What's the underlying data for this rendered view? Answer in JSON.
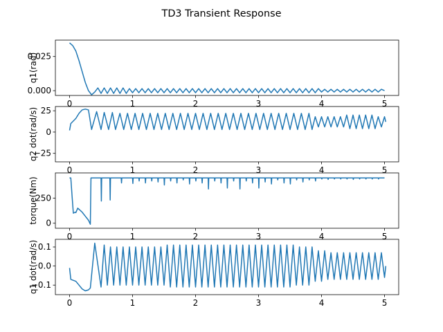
{
  "title": "TD3 Transient Response",
  "colors": {
    "series": "#1f77b4"
  },
  "chart_data": [
    {
      "type": "line",
      "ylabel": "q1(rad)",
      "xlim": [
        -0.225,
        5.225
      ],
      "ylim": [
        -0.0035,
        0.037
      ],
      "xticks": [
        0,
        1,
        2,
        3,
        4,
        5
      ],
      "xtick_labels": [
        "0",
        "1",
        "2",
        "3",
        "4",
        "5"
      ],
      "yticks": [
        0.0,
        0.025
      ],
      "ytick_labels": [
        "0.000",
        "0.025"
      ],
      "grid": false,
      "series": [
        {
          "x": [
            0,
            0.05,
            0.1,
            0.15,
            0.2,
            0.25,
            0.3,
            0.35,
            0.4,
            0.45,
            0.5,
            0.55,
            0.6,
            0.65,
            0.7,
            0.75,
            0.8,
            0.85,
            0.9,
            0.95,
            1.0,
            1.05,
            1.1,
            1.15,
            1.2,
            1.25,
            1.3,
            1.35,
            1.4,
            1.45,
            1.5,
            1.55,
            1.6,
            1.65,
            1.7,
            1.75,
            1.8,
            1.85,
            1.9,
            1.95,
            2.0,
            2.05,
            2.1,
            2.15,
            2.2,
            2.25,
            2.3,
            2.35,
            2.4,
            2.45,
            2.5,
            2.55,
            2.6,
            2.65,
            2.7,
            2.75,
            2.8,
            2.85,
            2.9,
            2.95,
            3.0,
            3.05,
            3.1,
            3.15,
            3.2,
            3.25,
            3.3,
            3.35,
            3.4,
            3.45,
            3.5,
            3.55,
            3.6,
            3.65,
            3.7,
            3.75,
            3.8,
            3.85,
            3.9,
            3.95,
            4.0,
            4.05,
            4.1,
            4.15,
            4.2,
            4.25,
            4.3,
            4.35,
            4.4,
            4.45,
            4.5,
            4.55,
            4.6,
            4.65,
            4.7,
            4.75,
            4.8,
            4.85,
            4.9,
            4.95,
            5.0
          ],
          "y": [
            0.035,
            0.033,
            0.029,
            0.022,
            0.014,
            0.006,
            0.0,
            -0.003,
            -0.001,
            0.002,
            -0.002,
            0.002,
            -0.002,
            0.002,
            -0.002,
            0.002,
            -0.002,
            0.002,
            -0.002,
            0.0015,
            -0.0015,
            0.0015,
            -0.0015,
            0.0015,
            -0.0015,
            0.0015,
            -0.0015,
            0.0015,
            -0.0015,
            0.0015,
            -0.0015,
            0.0015,
            -0.0015,
            0.0015,
            -0.0015,
            0.0015,
            -0.0015,
            0.0015,
            -0.0015,
            0.0015,
            -0.0015,
            0.0015,
            -0.0015,
            0.0015,
            -0.0015,
            0.0015,
            -0.0015,
            0.0015,
            -0.0015,
            0.0015,
            -0.0015,
            0.0015,
            -0.0015,
            0.0015,
            -0.0015,
            0.0015,
            -0.0015,
            0.0015,
            -0.0015,
            0.0015,
            -0.0015,
            0.0015,
            -0.0015,
            0.0015,
            -0.0015,
            0.0015,
            -0.0015,
            0.0015,
            -0.0015,
            0.0015,
            -0.0015,
            0.0015,
            -0.0015,
            0.0015,
            -0.0015,
            0.0015,
            -0.0015,
            0.0015,
            -0.0015,
            0.0015,
            -0.001,
            0.001,
            -0.001,
            0.001,
            -0.001,
            0.001,
            -0.001,
            0.001,
            -0.001,
            0.001,
            -0.001,
            0.001,
            -0.001,
            0.001,
            -0.001,
            0.001,
            -0.001,
            0.001,
            -0.001,
            0.001,
            0.0
          ]
        }
      ]
    },
    {
      "type": "line",
      "ylabel": "q2 dot(rad/s)",
      "xlim": [
        -0.225,
        5.225
      ],
      "ylim": [
        -35,
        30
      ],
      "xticks": [
        0,
        1,
        2,
        3,
        4,
        5
      ],
      "xtick_labels": [
        "0",
        "1",
        "2",
        "3",
        "4",
        "5"
      ],
      "yticks": [
        -25,
        0,
        25
      ],
      "ytick_labels": [
        "−25",
        "0",
        "25"
      ],
      "grid": false,
      "series": [
        {
          "x": [
            0,
            0.02,
            0.1,
            0.15,
            0.2,
            0.25,
            0.3,
            0.35,
            0.43,
            0.5,
            0.55,
            0.62,
            0.68,
            0.73,
            0.8,
            0.86,
            0.92,
            0.98,
            1.04,
            1.1,
            1.16,
            1.22,
            1.28,
            1.34,
            1.4,
            1.46,
            1.52,
            1.58,
            1.64,
            1.7,
            1.76,
            1.82,
            1.88,
            1.94,
            2.0,
            2.06,
            2.12,
            2.18,
            2.24,
            2.3,
            2.36,
            2.42,
            2.48,
            2.54,
            2.6,
            2.66,
            2.72,
            2.78,
            2.84,
            2.9,
            2.96,
            3.02,
            3.08,
            3.14,
            3.2,
            3.26,
            3.32,
            3.38,
            3.44,
            3.5,
            3.56,
            3.62,
            3.68,
            3.74,
            3.8,
            3.85,
            3.9,
            3.95,
            4.0,
            4.05,
            4.1,
            4.15,
            4.2,
            4.25,
            4.3,
            4.35,
            4.4,
            4.45,
            4.5,
            4.55,
            4.6,
            4.65,
            4.7,
            4.75,
            4.8,
            4.85,
            4.9,
            4.95,
            5.0,
            5.02
          ],
          "y": [
            2,
            10,
            16,
            22,
            26,
            27,
            26,
            3,
            24,
            3,
            23,
            3,
            23,
            3,
            22,
            3,
            22,
            3,
            22,
            3,
            22,
            3,
            22,
            3,
            22,
            3,
            22,
            3,
            22,
            3,
            22,
            3,
            22,
            3,
            22,
            3,
            22,
            3,
            22,
            3,
            22,
            3,
            22,
            3,
            22,
            3,
            22,
            3,
            22,
            3,
            22,
            3,
            22,
            3,
            22,
            3,
            22,
            3,
            22,
            3,
            22,
            3,
            22,
            3,
            22,
            3,
            18,
            6,
            18,
            6,
            18,
            6,
            18,
            6,
            18,
            6,
            20,
            4,
            20,
            4,
            20,
            4,
            20,
            4,
            20,
            4,
            18,
            6,
            18,
            12
          ]
        }
      ]
    },
    {
      "type": "line",
      "ylabel": "torque(Nm)",
      "xlim": [
        -0.225,
        5.225
      ],
      "ylim": [
        -50,
        500
      ],
      "xticks": [
        0,
        1,
        2,
        3,
        4,
        5
      ],
      "xtick_labels": [
        "0",
        "1",
        "2",
        "3",
        "4",
        "5"
      ],
      "yticks": [
        0,
        250
      ],
      "ytick_labels": [
        "0",
        "250"
      ],
      "grid": false,
      "series": [
        {
          "x": [
            0,
            0.02,
            0.04,
            0.06,
            0.09,
            0.1,
            0.13,
            0.2,
            0.25,
            0.3,
            0.33,
            0.34,
            0.5,
            0.505,
            0.51,
            0.52,
            0.64,
            0.645,
            0.65,
            0.66,
            0.82,
            0.825,
            0.83,
            1.0,
            1.005,
            1.01,
            1.1,
            1.105,
            1.11,
            1.2,
            1.205,
            1.21,
            1.3,
            1.305,
            1.31,
            1.4,
            1.405,
            1.41,
            1.5,
            1.505,
            1.51,
            1.6,
            1.605,
            1.61,
            1.7,
            1.705,
            1.71,
            1.8,
            1.805,
            1.81,
            1.9,
            1.905,
            1.91,
            2.0,
            2.005,
            2.01,
            2.1,
            2.105,
            2.11,
            2.2,
            2.205,
            2.21,
            2.3,
            2.305,
            2.31,
            2.4,
            2.405,
            2.41,
            2.5,
            2.505,
            2.51,
            2.6,
            2.605,
            2.61,
            2.7,
            2.705,
            2.71,
            2.8,
            2.805,
            2.81,
            2.9,
            2.905,
            2.91,
            3.0,
            3.005,
            3.01,
            3.1,
            3.105,
            3.11,
            3.2,
            3.205,
            3.21,
            3.3,
            3.305,
            3.31,
            3.4,
            3.405,
            3.41,
            3.5,
            3.505,
            3.51,
            3.6,
            3.605,
            3.61,
            3.7,
            3.705,
            3.71,
            3.8,
            3.805,
            3.81,
            3.9,
            3.905,
            3.91,
            4.0,
            4.005,
            4.01,
            4.1,
            4.105,
            4.11,
            4.2,
            4.205,
            4.21,
            4.3,
            4.305,
            4.31,
            4.4,
            4.405,
            4.41,
            4.5,
            4.505,
            4.51,
            4.6,
            4.605,
            4.61,
            4.7,
            4.705,
            4.71,
            4.8,
            4.805,
            4.81,
            4.9,
            4.905,
            4.91,
            5.0
          ],
          "y": [
            450,
            450,
            270,
            100,
            110,
            105,
            150,
            110,
            70,
            30,
            -10,
            450,
            450,
            220,
            450,
            450,
            450,
            230,
            450,
            450,
            450,
            400,
            450,
            450,
            395,
            450,
            450,
            420,
            450,
            450,
            400,
            450,
            450,
            420,
            450,
            450,
            410,
            450,
            450,
            380,
            450,
            450,
            420,
            450,
            450,
            400,
            450,
            450,
            430,
            450,
            450,
            390,
            450,
            450,
            420,
            450,
            450,
            400,
            450,
            450,
            340,
            450,
            450,
            420,
            450,
            450,
            400,
            450,
            450,
            350,
            450,
            450,
            420,
            450,
            450,
            340,
            450,
            450,
            420,
            450,
            450,
            400,
            450,
            450,
            350,
            450,
            450,
            410,
            450,
            450,
            390,
            450,
            450,
            430,
            450,
            450,
            400,
            450,
            450,
            390,
            450,
            450,
            430,
            450,
            450,
            410,
            450,
            450,
            430,
            450,
            450,
            420,
            450,
            450,
            440,
            450,
            450,
            435,
            450,
            450,
            440,
            450,
            450,
            440,
            450,
            450,
            440,
            450,
            450,
            435,
            450,
            450,
            440,
            450,
            450,
            440,
            450,
            450,
            440,
            450,
            450,
            440,
            450,
            450
          ]
        }
      ]
    },
    {
      "type": "line",
      "ylabel": "q1 dot(rad/s)",
      "xlim": [
        -0.225,
        5.225
      ],
      "ylim": [
        -0.15,
        0.14
      ],
      "xticks": [
        0,
        1,
        2,
        3,
        4,
        5
      ],
      "xtick_labels": [
        "0",
        "1",
        "2",
        "3",
        "4",
        "5"
      ],
      "yticks": [
        -0.1,
        0.0,
        0.1
      ],
      "ytick_labels": [
        "−0.1",
        "0.0",
        "0.1"
      ],
      "grid": false,
      "series": [
        {
          "x": [
            0,
            0.02,
            0.1,
            0.15,
            0.2,
            0.25,
            0.3,
            0.33,
            0.4,
            0.5,
            0.55,
            0.6,
            0.65,
            0.7,
            0.75,
            0.8,
            0.85,
            0.9,
            0.95,
            1.0,
            1.05,
            1.1,
            1.15,
            1.2,
            1.25,
            1.3,
            1.35,
            1.4,
            1.45,
            1.5,
            1.55,
            1.6,
            1.65,
            1.7,
            1.75,
            1.8,
            1.85,
            1.9,
            1.95,
            2.0,
            2.05,
            2.1,
            2.15,
            2.2,
            2.25,
            2.3,
            2.35,
            2.4,
            2.45,
            2.5,
            2.55,
            2.6,
            2.65,
            2.7,
            2.75,
            2.8,
            2.85,
            2.9,
            2.95,
            3.0,
            3.05,
            3.1,
            3.15,
            3.2,
            3.25,
            3.3,
            3.35,
            3.4,
            3.45,
            3.5,
            3.55,
            3.6,
            3.65,
            3.7,
            3.75,
            3.8,
            3.85,
            3.9,
            3.95,
            4.0,
            4.05,
            4.1,
            4.15,
            4.2,
            4.25,
            4.3,
            4.35,
            4.4,
            4.45,
            4.5,
            4.55,
            4.6,
            4.65,
            4.7,
            4.75,
            4.8,
            4.85,
            4.9,
            4.95,
            5.0,
            5.02
          ],
          "y": [
            -0.01,
            -0.07,
            -0.08,
            -0.1,
            -0.12,
            -0.13,
            -0.125,
            -0.115,
            0.12,
            -0.11,
            0.11,
            -0.1,
            0.1,
            -0.1,
            0.1,
            -0.1,
            0.1,
            -0.1,
            0.1,
            -0.1,
            0.1,
            -0.1,
            0.1,
            -0.1,
            0.1,
            -0.1,
            0.1,
            -0.1,
            0.1,
            -0.1,
            0.11,
            -0.11,
            0.11,
            -0.11,
            0.11,
            -0.11,
            0.11,
            -0.11,
            0.11,
            -0.11,
            0.11,
            -0.11,
            0.11,
            -0.11,
            0.11,
            -0.11,
            0.11,
            -0.11,
            0.11,
            -0.11,
            0.11,
            -0.11,
            0.11,
            -0.11,
            0.11,
            -0.11,
            0.11,
            -0.11,
            0.11,
            -0.11,
            0.11,
            -0.11,
            0.11,
            -0.11,
            0.11,
            -0.11,
            0.11,
            -0.11,
            0.11,
            -0.11,
            0.11,
            -0.1,
            0.1,
            -0.1,
            0.1,
            -0.1,
            0.1,
            -0.08,
            0.08,
            -0.08,
            0.08,
            -0.07,
            0.07,
            -0.07,
            0.07,
            -0.07,
            0.07,
            -0.07,
            0.07,
            -0.07,
            0.07,
            -0.07,
            0.07,
            -0.07,
            0.07,
            -0.07,
            0.07,
            -0.07,
            0.07,
            -0.06,
            0.0
          ]
        }
      ]
    }
  ]
}
